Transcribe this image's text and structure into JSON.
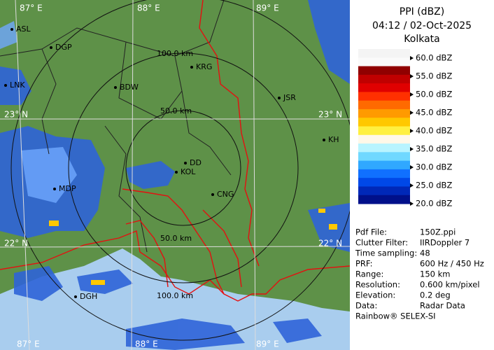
{
  "header": {
    "title": "PPI (dBZ)",
    "time": "04:12 / 02-Oct-2025",
    "site": "Kolkata"
  },
  "legend": {
    "range": [
      20,
      60
    ],
    "ticks": [
      {
        "value": 60,
        "label": "60.0 dBZ"
      },
      {
        "value": 55,
        "label": "55.0 dBZ"
      },
      {
        "value": 50,
        "label": "50.0 dBZ"
      },
      {
        "value": 45,
        "label": "45.0 dBZ"
      },
      {
        "value": 40,
        "label": "40.0 dBZ"
      },
      {
        "value": 35,
        "label": "35.0 dBZ"
      },
      {
        "value": 30,
        "label": "30.0 dBZ"
      },
      {
        "value": 25,
        "label": "25.0 dBZ"
      },
      {
        "value": 20,
        "label": "20.0 dBZ"
      }
    ],
    "colors": [
      "#f4f4f4",
      "#fafafa",
      "#900000",
      "#c00000",
      "#e00000",
      "#ff3000",
      "#ff6a00",
      "#ff9a00",
      "#ffc800",
      "#fff040",
      "#fff8e8",
      "#b8f4ff",
      "#70d8ff",
      "#30a8ff",
      "#1070ff",
      "#0048e8",
      "#0028b8",
      "#00108a"
    ]
  },
  "info": {
    "rows": [
      [
        "Pdf File:",
        "150Z.ppi"
      ],
      [
        "Clutter Filter:",
        "IIRDoppler 7"
      ],
      [
        "Time sampling:",
        "48"
      ],
      [
        "PRF:",
        "600 Hz / 450 Hz"
      ],
      [
        "Range:",
        "150 km"
      ],
      [
        "Resolution:",
        "0.600 km/pixel"
      ],
      [
        "Elevation:",
        "0.2 deg"
      ],
      [
        "Data:",
        "Radar Data"
      ]
    ]
  },
  "footer": "Rainbow® SELEX-SI",
  "map": {
    "grid_labels": [
      "87° E",
      "88° E",
      "89° E",
      "23° N",
      "22° N",
      "23° N",
      "22° N",
      "87° E",
      "88° E",
      "89° E"
    ],
    "ring_labels": [
      "100.0 km",
      "50.0 km",
      "50.0 km",
      "100.0 km"
    ],
    "places": [
      "ASL",
      "DGP",
      "KRG",
      "BDW",
      "JSR",
      "KH",
      "DD",
      "KOL",
      "CNG",
      "MDP",
      "DGH",
      "LNK"
    ]
  }
}
